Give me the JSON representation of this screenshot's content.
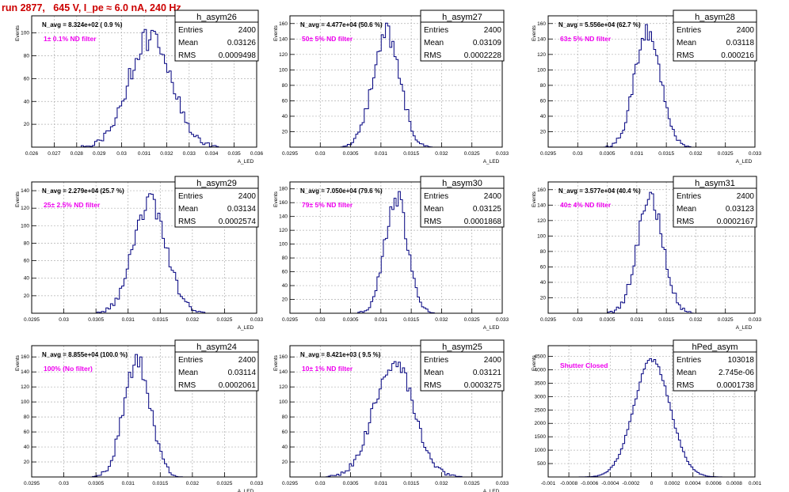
{
  "run_title": "run 2877,   645 V, I_pe ≈ 6.0 nA, 240 Hz",
  "colors": {
    "title": "#cc0000",
    "annotation": "#ee00ee",
    "histogram": "#00007f",
    "grid": "#b0b0b0",
    "frame": "#000000"
  },
  "chart_data": [
    {
      "type": "histogram",
      "name": "h_asym26",
      "subtitle": "N_avg = 8.324e+02 ( 0.9 %)",
      "annotation": "1± 0.1% ND filter",
      "stats": {
        "entries": "2400",
        "mean": "0.03126",
        "rms": "0.0009498"
      },
      "xlabel": "A_LED",
      "ylabel": "Events",
      "xlim": [
        0.026,
        0.036
      ],
      "ylim": [
        0,
        115
      ],
      "xticks": [
        "0.026",
        "0.027",
        "0.028",
        "0.029",
        "0.03",
        "0.031",
        "0.032",
        "0.033",
        "0.034",
        "0.035",
        "0.036"
      ],
      "yticks": [
        "20",
        "40",
        "60",
        "80",
        "100"
      ],
      "mean": 0.03126,
      "sigma": 0.00095,
      "peak": 103,
      "bins": 100,
      "grid": true
    },
    {
      "type": "histogram",
      "name": "h_asym27",
      "subtitle": "N_avg = 4.477e+04 (50.6 %)",
      "annotation": "50± 5% ND filter",
      "stats": {
        "entries": "2400",
        "mean": "0.03109",
        "rms": "0.0002228"
      },
      "xlabel": "A_LED",
      "ylabel": "Events",
      "xlim": [
        0.0295,
        0.033
      ],
      "ylim": [
        0,
        170
      ],
      "xticks": [
        "0.0295",
        "0.03",
        "0.0305",
        "0.031",
        "0.0315",
        "0.032",
        "0.0325",
        "0.033"
      ],
      "yticks": [
        "20",
        "40",
        "60",
        "80",
        "100",
        "120",
        "140",
        "160"
      ],
      "mean": 0.03109,
      "sigma": 0.000223,
      "peak": 160,
      "bins": 100,
      "grid": true
    },
    {
      "type": "histogram",
      "name": "h_asym28",
      "subtitle": "N_avg = 5.556e+04 (62.7 %)",
      "annotation": "63± 5% ND filter",
      "stats": {
        "entries": "2400",
        "mean": "0.03118",
        "rms": "0.000216"
      },
      "xlabel": "A_LED",
      "ylabel": "Events",
      "xlim": [
        0.0295,
        0.033
      ],
      "ylim": [
        0,
        170
      ],
      "xticks": [
        "0.0295",
        "0.03",
        "0.0305",
        "0.031",
        "0.0315",
        "0.032",
        "0.0325",
        "0.033"
      ],
      "yticks": [
        "20",
        "40",
        "60",
        "80",
        "100",
        "120",
        "140",
        "160"
      ],
      "mean": 0.03118,
      "sigma": 0.000216,
      "peak": 160,
      "bins": 100,
      "grid": true
    },
    {
      "type": "histogram",
      "name": "h_asym29",
      "subtitle": "N_avg = 2.279e+04 (25.7 %)",
      "annotation": "25± 2.5% ND filter",
      "stats": {
        "entries": "2400",
        "mean": "0.03134",
        "rms": "0.0002574"
      },
      "xlabel": "A_LED",
      "ylabel": "Events",
      "xlim": [
        0.0295,
        0.033
      ],
      "ylim": [
        0,
        150
      ],
      "xticks": [
        "0.0295",
        "0.03",
        "0.0305",
        "0.031",
        "0.0315",
        "0.032",
        "0.0325",
        "0.033"
      ],
      "yticks": [
        "20",
        "40",
        "60",
        "80",
        "100",
        "120",
        "140"
      ],
      "mean": 0.03134,
      "sigma": 0.000257,
      "peak": 138,
      "bins": 100,
      "grid": true
    },
    {
      "type": "histogram",
      "name": "h_asym30",
      "subtitle": "N_avg = 7.050e+04 (79.6 %)",
      "annotation": "79± 5% ND filter",
      "stats": {
        "entries": "2400",
        "mean": "0.03125",
        "rms": "0.0001868"
      },
      "xlabel": "A_LED",
      "ylabel": "Events",
      "xlim": [
        0.0295,
        0.033
      ],
      "ylim": [
        0,
        190
      ],
      "xticks": [
        "0.0295",
        "0.03",
        "0.0305",
        "0.031",
        "0.0315",
        "0.032",
        "0.0325",
        "0.033"
      ],
      "yticks": [
        "20",
        "40",
        "60",
        "80",
        "100",
        "120",
        "140",
        "160",
        "180"
      ],
      "mean": 0.03125,
      "sigma": 0.000187,
      "peak": 182,
      "bins": 100,
      "grid": true
    },
    {
      "type": "histogram",
      "name": "h_asym31",
      "subtitle": "N_avg = 3.577e+04 (40.4 %)",
      "annotation": "40± 4% ND filter",
      "stats": {
        "entries": "2400",
        "mean": "0.03123",
        "rms": "0.0002167"
      },
      "xlabel": "A_LED",
      "ylabel": "Events",
      "xlim": [
        0.0295,
        0.033
      ],
      "ylim": [
        0,
        170
      ],
      "xticks": [
        "0.0295",
        "0.03",
        "0.0305",
        "0.031",
        "0.0315",
        "0.032",
        "0.0325",
        "0.033"
      ],
      "yticks": [
        "20",
        "40",
        "60",
        "80",
        "100",
        "120",
        "140",
        "160"
      ],
      "mean": 0.03123,
      "sigma": 0.000217,
      "peak": 160,
      "bins": 100,
      "grid": true
    },
    {
      "type": "histogram",
      "name": "h_asym24",
      "subtitle": "N_avg = 8.855e+04 (100.0 %)",
      "annotation": "100% (No filter)",
      "stats": {
        "entries": "2400",
        "mean": "0.03114",
        "rms": "0.0002061"
      },
      "xlabel": "A_LED",
      "ylabel": "Events",
      "xlim": [
        0.0295,
        0.033
      ],
      "ylim": [
        0,
        175
      ],
      "xticks": [
        "0.0295",
        "0.03",
        "0.0305",
        "0.031",
        "0.0315",
        "0.032",
        "0.0325",
        "0.033"
      ],
      "yticks": [
        "20",
        "40",
        "60",
        "80",
        "100",
        "120",
        "140",
        "160"
      ],
      "mean": 0.03114,
      "sigma": 0.000206,
      "peak": 165,
      "bins": 100,
      "grid": true
    },
    {
      "type": "histogram",
      "name": "h_asym25",
      "subtitle": "N_avg = 8.421e+03 ( 9.5 %)",
      "annotation": "10± 1% ND filter",
      "stats": {
        "entries": "2400",
        "mean": "0.03121",
        "rms": "0.0003275"
      },
      "xlabel": "A_LED",
      "ylabel": "Events",
      "xlim": [
        0.0295,
        0.033
      ],
      "ylim": [
        0,
        175
      ],
      "xticks": [
        "0.0295",
        "0.03",
        "0.0305",
        "0.031",
        "0.0315",
        "0.032",
        "0.0325",
        "0.033"
      ],
      "yticks": [
        "20",
        "40",
        "60",
        "80",
        "100",
        "120",
        "140",
        "160"
      ],
      "mean": 0.03121,
      "sigma": 0.000328,
      "peak": 165,
      "bins": 100,
      "grid": true
    },
    {
      "type": "histogram",
      "name": "hPed_asym",
      "subtitle": "",
      "annotation": "Shutter Closed",
      "stats": {
        "entries": "103018",
        "mean": "2.745e-06",
        "rms": "0.0001738"
      },
      "xlabel": "",
      "ylabel": "Events",
      "xlim": [
        -0.001,
        0.001
      ],
      "ylim": [
        0,
        4900
      ],
      "xticks": [
        "-0.001",
        "-0.0008",
        "-0.0006",
        "-0.0004",
        "-0.0002",
        "0",
        "0.0002",
        "0.0004",
        "0.0006",
        "0.0008",
        "0.001"
      ],
      "yticks": [
        "500",
        "1000",
        "1500",
        "2000",
        "2500",
        "3000",
        "3500",
        "4000",
        "4500"
      ],
      "mean": 2.745e-06,
      "sigma": 0.000174,
      "peak": 4700,
      "bins": 100,
      "grid": true
    }
  ]
}
